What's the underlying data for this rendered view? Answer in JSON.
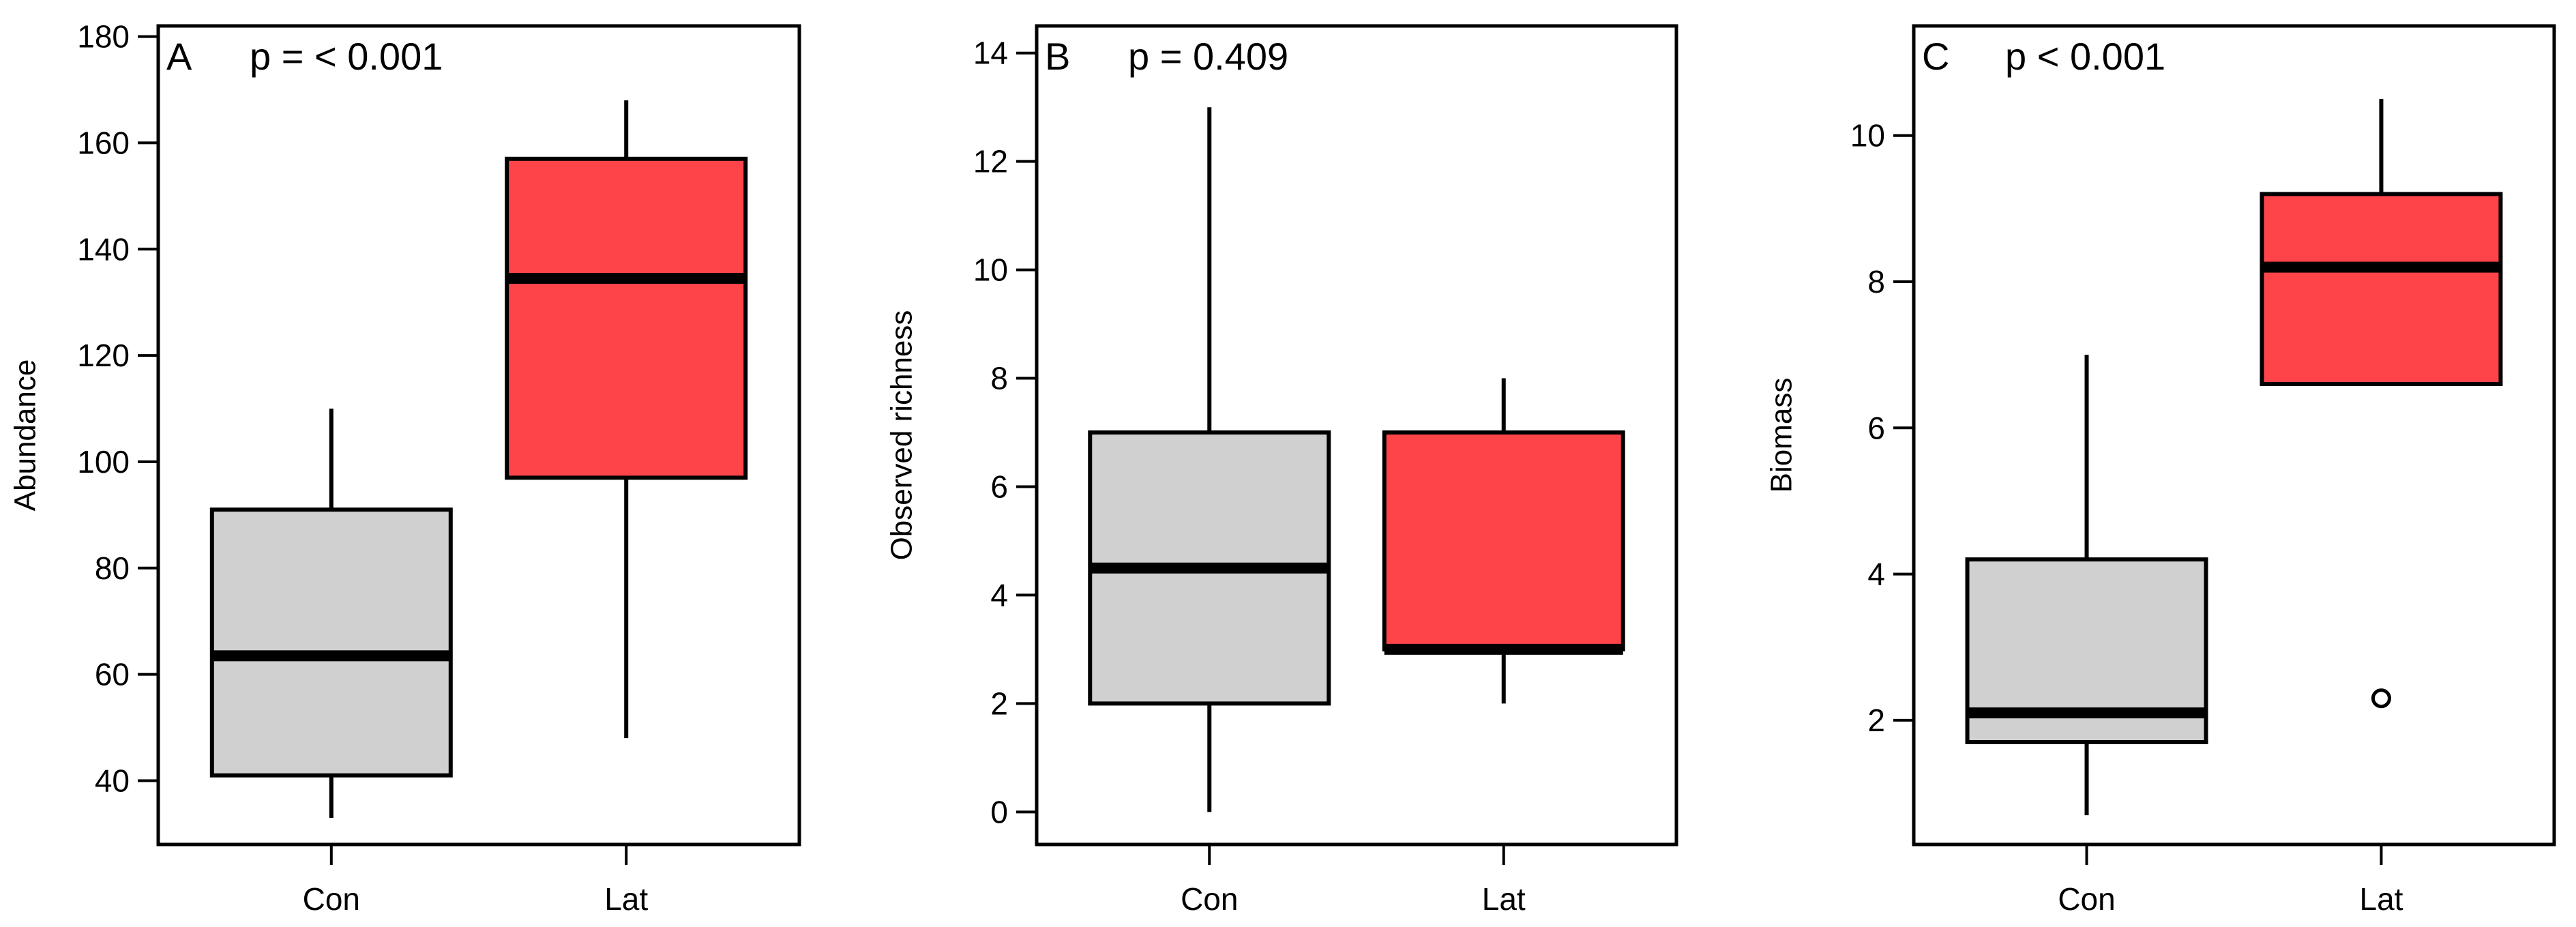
{
  "colors": {
    "con_fill": "#d0d0d0",
    "lat_fill": "#ff4449",
    "stroke": "#000000",
    "background": "#ffffff"
  },
  "chart_data": [
    {
      "type": "box",
      "panel_label": "A",
      "p_text": "p = < 0.001",
      "ylabel": "Abundance",
      "xlabel": "",
      "ylim": [
        28,
        182
      ],
      "yticks": [
        40,
        60,
        80,
        100,
        120,
        140,
        160,
        180
      ],
      "grid": false,
      "categories": [
        "Con",
        "Lat"
      ],
      "boxes": [
        {
          "name": "Con",
          "whisker_low": 33,
          "q1": 41,
          "median": 63.5,
          "q3": 91,
          "whisker_high": 110,
          "outliers": []
        },
        {
          "name": "Lat",
          "whisker_low": 48,
          "q1": 97,
          "median": 134.5,
          "q3": 157,
          "whisker_high": 168,
          "outliers": []
        }
      ]
    },
    {
      "type": "box",
      "panel_label": "B",
      "p_text": "p = 0.409",
      "ylabel": "Observed richness",
      "xlabel": "",
      "ylim": [
        -0.6,
        14.5
      ],
      "yticks": [
        0,
        2,
        4,
        6,
        8,
        10,
        12,
        14
      ],
      "grid": false,
      "categories": [
        "Con",
        "Lat"
      ],
      "boxes": [
        {
          "name": "Con",
          "whisker_low": 0,
          "q1": 2,
          "median": 4.5,
          "q3": 7,
          "whisker_high": 13,
          "outliers": []
        },
        {
          "name": "Lat",
          "whisker_low": 2,
          "q1": 3,
          "median": 3,
          "q3": 7,
          "whisker_high": 8,
          "outliers": []
        }
      ]
    },
    {
      "type": "box",
      "panel_label": "C",
      "p_text": "p < 0.001",
      "ylabel": "Biomass",
      "xlabel": "",
      "ylim": [
        0.3,
        11.5
      ],
      "yticks": [
        2,
        4,
        6,
        8,
        10
      ],
      "grid": false,
      "categories": [
        "Con",
        "Lat"
      ],
      "boxes": [
        {
          "name": "Con",
          "whisker_low": 0.7,
          "q1": 1.7,
          "median": 2.1,
          "q3": 4.2,
          "whisker_high": 7.0,
          "outliers": []
        },
        {
          "name": "Lat",
          "whisker_low": null,
          "q1": 6.6,
          "median": 8.2,
          "q3": 9.2,
          "whisker_high": 10.5,
          "outliers": [
            2.3
          ]
        }
      ]
    }
  ]
}
